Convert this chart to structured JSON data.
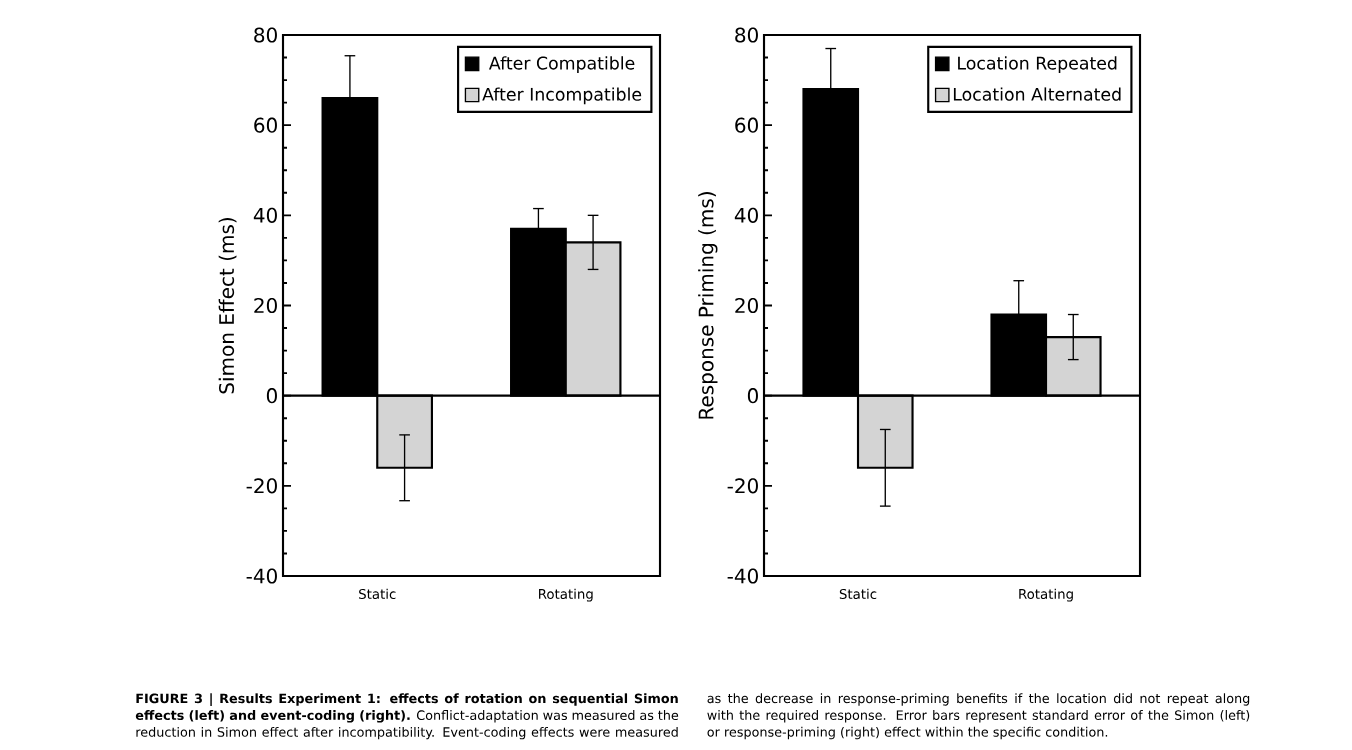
{
  "chart_data": [
    {
      "type": "bar",
      "title": "**FIGURE 3 | Results Experiment 1: effects of rotation on sequential Simon effects (left) and event-coding (right).**",
      "annotations": [
        "Conflict-adaptation was measured as the reduction in Simon effect after incompatibility. Event-coding effects were measured as the decrease in response-priming benefits if the location did not repeat along with the required response. Error bars represent standard error of the Simon (left) or response-priming (right) effect within the specific condition."
      ],
      "categories": [
        "Static",
        "Rotating"
      ],
      "ylabel": "Simon Effect (ms)",
      "ylim": [
        -40,
        80
      ],
      "yticks": [
        -40,
        -20,
        0,
        20,
        40,
        60,
        80
      ],
      "legend": "top right",
      "series": [
        {
          "name": "After Compatible",
          "color": "#000000",
          "values": [
            66,
            37
          ],
          "errors": [
            9.4,
            4.5
          ]
        },
        {
          "name": "After Incompatible",
          "color": "#d4d4d4",
          "values": [
            -16,
            34
          ],
          "errors": [
            7.3,
            6
          ]
        }
      ]
    },
    {
      "type": "bar",
      "categories": [
        "Static",
        "Rotating"
      ],
      "ylabel": "Response Priming (ms)",
      "ylim": [
        -40,
        80
      ],
      "yticks": [
        -40,
        -20,
        0,
        20,
        40,
        60,
        80
      ],
      "legend": "top right",
      "series": [
        {
          "name": "Location Repeated",
          "color": "#000000",
          "values": [
            68,
            18
          ],
          "errors": [
            9,
            7.5
          ]
        },
        {
          "name": "Location Alternated",
          "color": "#d4d4d4",
          "values": [
            -16,
            13
          ],
          "errors": [
            8.5,
            5
          ]
        }
      ]
    }
  ]
}
